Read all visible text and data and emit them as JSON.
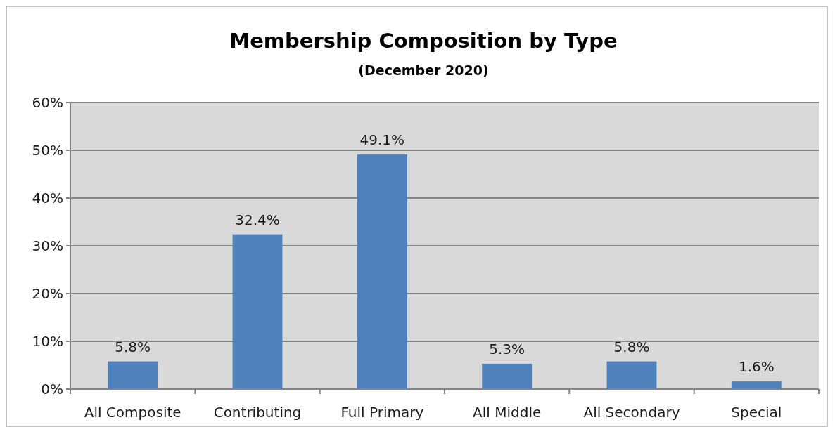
{
  "chart_data": {
    "type": "bar",
    "title": "Membership Composition by Type",
    "subtitle": "(December 2020)",
    "categories": [
      "All Composite",
      "Contributing",
      "Full Primary",
      "All Middle",
      "All Secondary",
      "Special"
    ],
    "values": [
      5.8,
      32.4,
      49.1,
      5.3,
      5.8,
      1.6
    ],
    "value_labels": [
      "5.8%",
      "32.4%",
      "49.1%",
      "5.3%",
      "5.8%",
      "1.6%"
    ],
    "color": "#4f81bd",
    "ylim": [
      0,
      60
    ],
    "yticks": [
      {
        "value": 0,
        "label": "0%"
      },
      {
        "value": 10,
        "label": "10%"
      },
      {
        "value": 20,
        "label": "20%"
      },
      {
        "value": 30,
        "label": "30%"
      },
      {
        "value": 40,
        "label": "40%"
      },
      {
        "value": 50,
        "label": "50%"
      },
      {
        "value": 60,
        "label": "60%"
      }
    ],
    "grid": "y"
  }
}
